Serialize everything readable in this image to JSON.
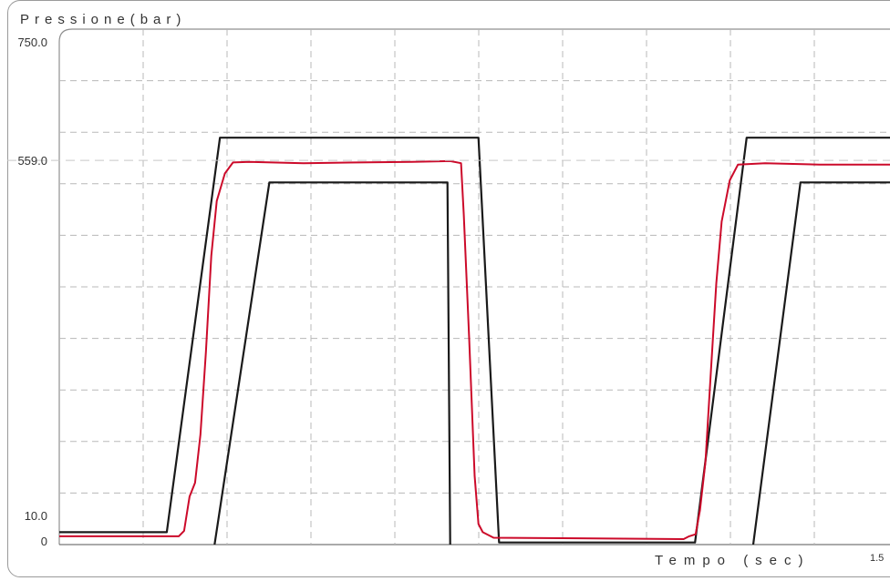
{
  "chart_data": {
    "type": "line",
    "ylabel": "Pressione(bar)",
    "xlabel": "Tempo (sec)",
    "y_ticks": [
      {
        "value": 750,
        "label": "750.0"
      },
      {
        "value": 559,
        "label": "559.0"
      },
      {
        "value": 10,
        "label": "10.0"
      },
      {
        "value": 0,
        "label": "0"
      }
    ],
    "x_ticks": [
      {
        "value": 1.5,
        "label": "1.5"
      }
    ],
    "xlim": [
      0,
      1.53
    ],
    "ylim": [
      0,
      750
    ],
    "grid": true,
    "series": [
      {
        "color": "#1a1a1a",
        "points": [
          [
            0,
            18
          ],
          [
            0.198,
            18
          ],
          [
            0.296,
            592
          ],
          [
            0.772,
            592
          ],
          [
            0.81,
            3
          ],
          [
            1.171,
            3
          ],
          [
            1.266,
            592
          ],
          [
            1.53,
            592
          ]
        ]
      },
      {
        "color": "#1a1a1a",
        "points": [
          [
            0.286,
            0
          ],
          [
            0.387,
            527
          ],
          [
            0.715,
            527
          ],
          [
            0.72,
            0
          ]
        ]
      },
      {
        "color": "#cc0a2a",
        "points": [
          [
            0,
            12
          ],
          [
            0.22,
            12
          ],
          [
            0.23,
            20
          ],
          [
            0.24,
            70
          ],
          [
            0.25,
            90
          ],
          [
            0.26,
            160
          ],
          [
            0.27,
            280
          ],
          [
            0.28,
            420
          ],
          [
            0.29,
            500
          ],
          [
            0.305,
            540
          ],
          [
            0.32,
            556
          ],
          [
            0.35,
            557
          ],
          [
            0.45,
            555
          ],
          [
            0.55,
            556
          ],
          [
            0.65,
            557
          ],
          [
            0.72,
            558
          ],
          [
            0.74,
            555
          ],
          [
            0.745,
            480
          ],
          [
            0.755,
            300
          ],
          [
            0.765,
            100
          ],
          [
            0.772,
            30
          ],
          [
            0.78,
            18
          ],
          [
            0.8,
            10
          ],
          [
            1.15,
            8
          ],
          [
            1.16,
            12
          ],
          [
            1.172,
            15
          ],
          [
            1.18,
            50
          ],
          [
            1.19,
            120
          ],
          [
            1.2,
            250
          ],
          [
            1.21,
            380
          ],
          [
            1.22,
            470
          ],
          [
            1.235,
            530
          ],
          [
            1.25,
            553
          ],
          [
            1.3,
            555
          ],
          [
            1.4,
            553
          ],
          [
            1.53,
            553
          ]
        ]
      },
      {
        "color": "#1a1a1a",
        "points": [
          [
            1.278,
            0
          ],
          [
            1.365,
            527
          ],
          [
            1.53,
            527
          ]
        ]
      }
    ]
  }
}
